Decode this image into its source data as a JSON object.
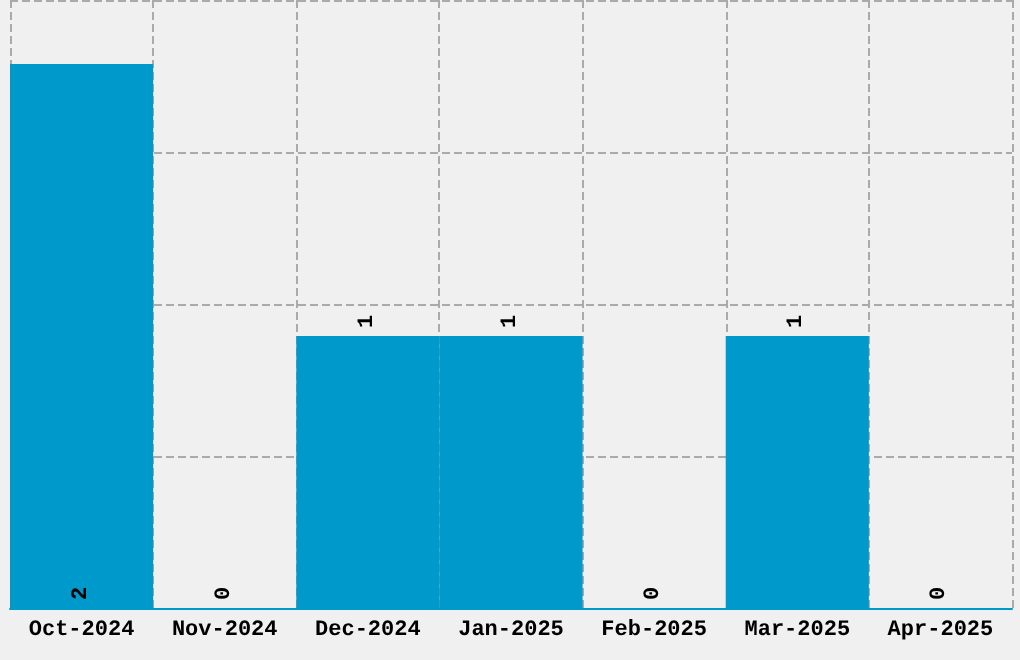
{
  "chart_data": {
    "type": "bar",
    "categories": [
      "Oct-2024",
      "Nov-2024",
      "Dec-2024",
      "Jan-2025",
      "Feb-2025",
      "Mar-2025",
      "Apr-2025"
    ],
    "values": [
      2,
      0,
      1,
      1,
      0,
      1,
      0
    ],
    "color": "#0099cc",
    "data_labels": true,
    "grid": true,
    "relative": false
  }
}
